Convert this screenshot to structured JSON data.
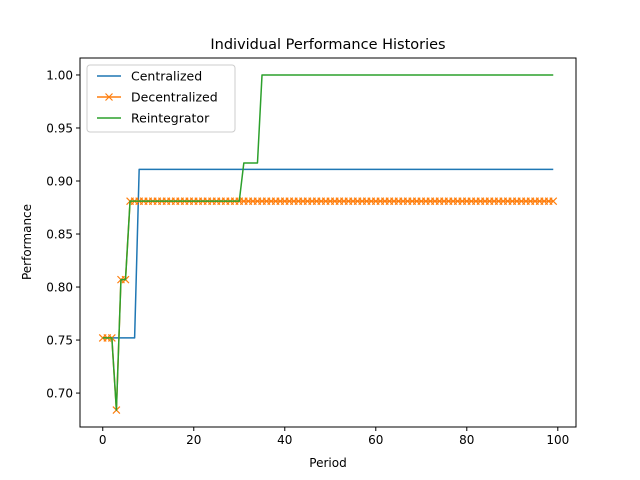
{
  "chart_data": {
    "type": "line",
    "title": "Individual Performance Histories",
    "xlabel": "Period",
    "ylabel": "Performance",
    "xlim": [
      -5,
      104
    ],
    "ylim": [
      0.668,
      1.016
    ],
    "xticks": [
      0,
      20,
      40,
      60,
      80,
      100
    ],
    "yticks": [
      0.7,
      0.75,
      0.8,
      0.85,
      0.9,
      0.95,
      1.0
    ],
    "xtick_labels": [
      "0",
      "20",
      "40",
      "60",
      "80",
      "100"
    ],
    "ytick_labels": [
      "0.70",
      "0.75",
      "0.80",
      "0.85",
      "0.90",
      "0.95",
      "1.00"
    ],
    "grid": false,
    "legend_position": "top-left",
    "series": [
      {
        "name": "Centralized",
        "color": "#1f77b4",
        "marker": "none",
        "segments": [
          {
            "x": [
              0,
              7
            ],
            "y": 0.752
          },
          {
            "x": [
              8,
              99
            ],
            "y": 0.911
          }
        ]
      },
      {
        "name": "Decentralized",
        "color": "#ff7f0e",
        "marker": "x",
        "segments": [
          {
            "x": [
              0,
              2
            ],
            "y": 0.752
          },
          {
            "x": [
              3,
              3
            ],
            "y": 0.684
          },
          {
            "x": [
              4,
              5
            ],
            "y": 0.807
          },
          {
            "x": [
              6,
              99
            ],
            "y": 0.881
          }
        ]
      },
      {
        "name": "Reintegrator",
        "color": "#2ca02c",
        "marker": "none",
        "segments": [
          {
            "x": [
              0,
              2
            ],
            "y": 0.752
          },
          {
            "x": [
              3,
              3
            ],
            "y": 0.684
          },
          {
            "x": [
              4,
              5
            ],
            "y": 0.807
          },
          {
            "x": [
              6,
              30
            ],
            "y": 0.881
          },
          {
            "x": [
              31,
              34
            ],
            "y": 0.917
          },
          {
            "x": [
              35,
              99
            ],
            "y": 1.0
          }
        ]
      }
    ]
  }
}
